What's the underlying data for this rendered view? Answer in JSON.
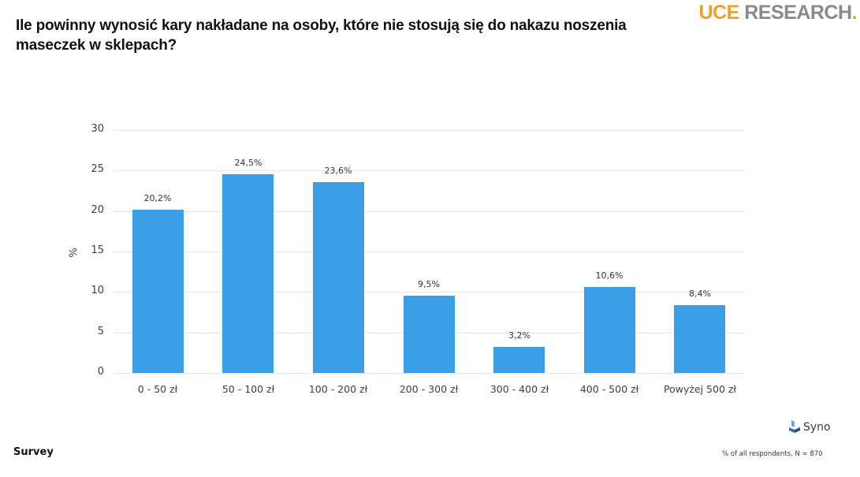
{
  "header": {
    "title": "Ile powinny wynosić kary nakładane na osoby, które nie stosują się do nakazu noszenia maseczek w sklepach?",
    "logo": {
      "part1": "UCE",
      "part2": " RESEARCH",
      "dot": ".",
      "accent_color": "#f0a030",
      "text_color": "#8a8a8a"
    }
  },
  "chart_data": {
    "type": "bar",
    "title": "Ile powinny wynosić kary nakładane na osoby, które nie stosują się do nakazu noszenia maseczek w sklepach?",
    "categories": [
      "0 - 50 zł",
      "50 - 100 zł",
      "100 - 200 zł",
      "200 - 300 zł",
      "300 - 400 zł",
      "400 - 500 zł",
      "Powyżej 500 zł"
    ],
    "values": [
      20.2,
      24.5,
      23.6,
      9.5,
      3.2,
      10.6,
      8.4
    ],
    "data_labels": [
      "20,2%",
      "24,5%",
      "23,6%",
      "9,5%",
      "3,2%",
      "10,6%",
      "8,4%"
    ],
    "xlabel": "",
    "ylabel": "%",
    "ylim": [
      0,
      30
    ],
    "yticks": [
      "0",
      "5",
      "10",
      "15",
      "20",
      "25",
      "30"
    ],
    "grid": true,
    "legend": "none",
    "bar_color": "#3a9fe6"
  },
  "footer": {
    "left_label": "Survey",
    "brand": "Syno",
    "note": "% of all respondents, N = 870"
  }
}
